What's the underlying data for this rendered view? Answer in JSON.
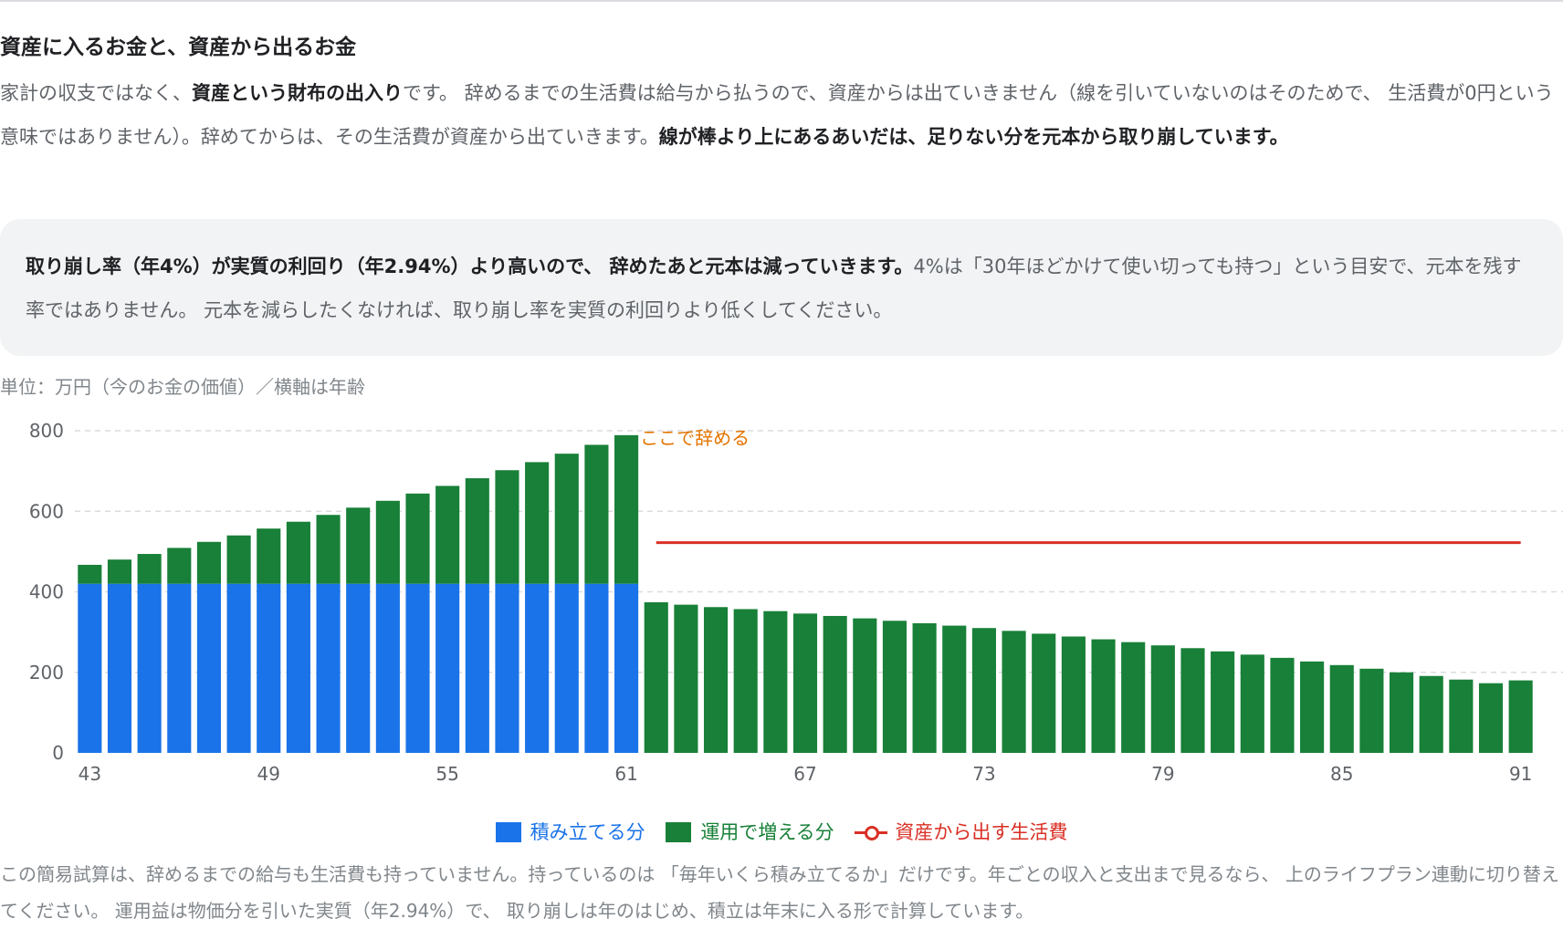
{
  "section": {
    "title": "資産に入るお金と、資産から出るお金",
    "intro_1": "家計の収支ではなく、",
    "intro_bold_1": "資産という財布の出入り",
    "intro_2": "です。 辞めるまでの生活費は給与から払うので、資産からは出ていきません（線を引いていないのはそのためで、 生活費が0円という意味ではありません）。辞めてからは、その生活費が資産から出ていきます。",
    "intro_bold_2": "線が棒より上にあるあいだは、足りない分を元本から取り崩しています。"
  },
  "note": {
    "bold": "取り崩し率（年4%）が実質の利回り（年2.94%）より高いので、 辞めたあと元本は減っていきます。",
    "text": "4%は「30年ほどかけて使い切っても持つ」という目安で、元本を残す率ではありません。 元本を減らしたくなければ、取り崩し率を実質の利回りより低くしてください。"
  },
  "unit_label": "単位：万円（今のお金の価値）／横軸は年齢",
  "chart_data": {
    "type": "bar",
    "stacked": true,
    "x": [
      43,
      44,
      45,
      46,
      47,
      48,
      49,
      50,
      51,
      52,
      53,
      54,
      55,
      56,
      57,
      58,
      59,
      60,
      61,
      62,
      63,
      64,
      65,
      66,
      67,
      68,
      69,
      70,
      71,
      72,
      73,
      74,
      75,
      76,
      77,
      78,
      79,
      80,
      81,
      82,
      83,
      84,
      85,
      86,
      87,
      88,
      89,
      90,
      91
    ],
    "xticks": [
      "43",
      "49",
      "55",
      "61",
      "67",
      "73",
      "79",
      "85",
      "91"
    ],
    "yticks": [
      "0",
      "200",
      "400",
      "600",
      "800"
    ],
    "ylim": [
      0,
      800
    ],
    "grid": true,
    "series": [
      {
        "name": "積み立てる分",
        "color": "#1a73e8",
        "values": [
          420,
          420,
          420,
          420,
          420,
          420,
          420,
          420,
          420,
          420,
          420,
          420,
          420,
          420,
          420,
          420,
          420,
          420,
          420,
          0,
          0,
          0,
          0,
          0,
          0,
          0,
          0,
          0,
          0,
          0,
          0,
          0,
          0,
          0,
          0,
          0,
          0,
          0,
          0,
          0,
          0,
          0,
          0,
          0,
          0,
          0,
          0,
          0,
          0
        ]
      },
      {
        "name": "運用で増える分",
        "color": "#188038",
        "values": [
          47,
          60,
          74,
          89,
          104,
          120,
          137,
          154,
          171,
          189,
          206,
          224,
          243,
          262,
          282,
          302,
          323,
          345,
          369,
          374,
          368,
          362,
          357,
          352,
          346,
          340,
          334,
          328,
          322,
          316,
          310,
          303,
          296,
          289,
          282,
          275,
          267,
          260,
          252,
          244,
          236,
          227,
          218,
          209,
          200,
          191,
          182,
          173,
          180
        ]
      },
      {
        "name": "資産から出す生活費",
        "type": "line",
        "color": "#d93025",
        "x_range": [
          62,
          91
        ],
        "value": 522
      }
    ],
    "annotation": {
      "text": "ここで辞める",
      "x": 61,
      "color": "#e37400"
    }
  },
  "legend": {
    "contrib": "積み立てる分",
    "growth": "運用で増える分",
    "spending": "資産から出す生活費"
  },
  "footer": "この簡易試算は、辞めるまでの給与も生活費も持っていません。持っているのは 「毎年いくら積み立てるか」だけです。年ごとの収入と支出まで見るなら、 上のライフプラン連動に切り替えてください。 運用益は物価分を引いた実質（年2.94%）で、 取り崩しは年のはじめ、積立は年末に入る形で計算しています。"
}
